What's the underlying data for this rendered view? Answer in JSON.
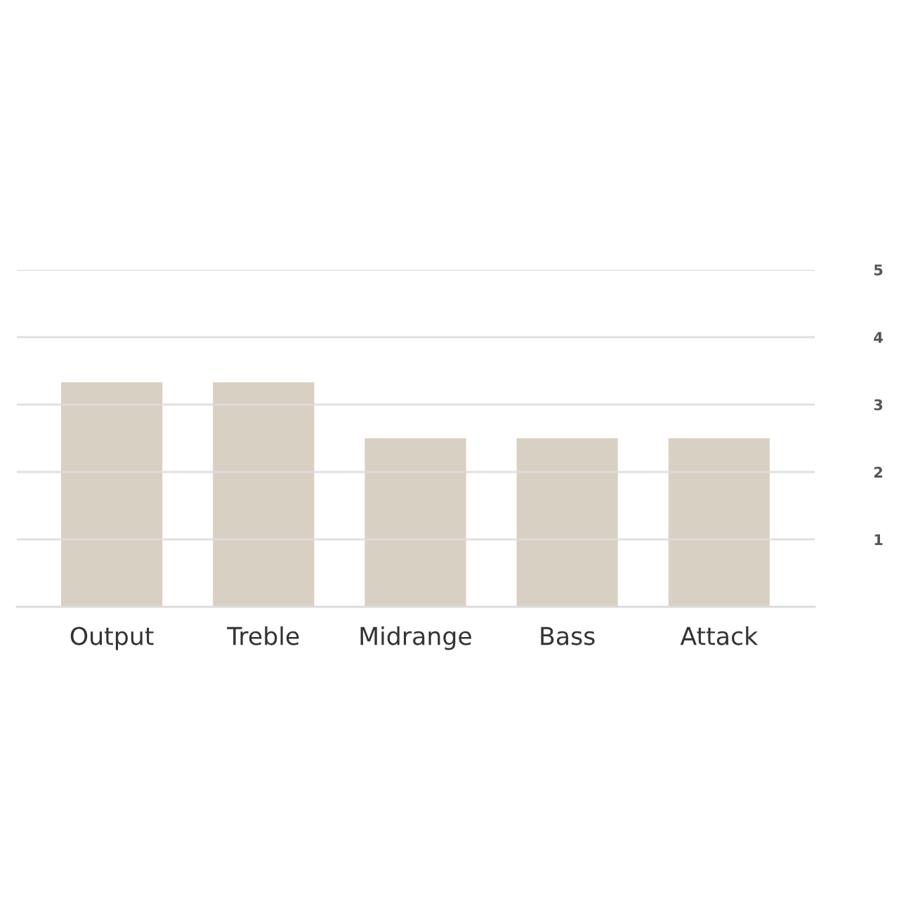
{
  "chart_data": {
    "type": "bar",
    "categories": [
      "Output",
      "Treble",
      "Midrange",
      "Bass",
      "Attack"
    ],
    "values": [
      3.33,
      3.33,
      2.5,
      2.5,
      2.5
    ],
    "color": "#d9d0c4",
    "ylim": [
      0,
      5
    ],
    "yticks": [
      1,
      2,
      3,
      4,
      5
    ],
    "grid": "y"
  }
}
